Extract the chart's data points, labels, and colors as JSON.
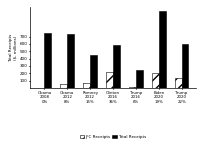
{
  "candidates": [
    "Obama\n2008\n0%",
    "Obama\n2012\n8%",
    "Romney\n2012\n15%",
    "Clinton\n2016\n36%",
    "Trump\n2016\n6%",
    "Biden\n2020\n19%",
    "Trump\n2020\n22%"
  ],
  "total_receipts": [
    745,
    738,
    449,
    585,
    239,
    1045,
    596
  ],
  "jfc_receipts": [
    3,
    58,
    68,
    213,
    15,
    200,
    130
  ],
  "ylabel": "Total Receipts\n($, millions)",
  "legend_jfc": "JFC Receipts",
  "legend_total": "Total Receipts",
  "bar_color_total": "#000000",
  "bar_color_jfc": "#ffffff",
  "bar_hatch": "///",
  "background_color": "#ffffff",
  "ylim": [
    0,
    1100
  ],
  "yticks": [
    100,
    200,
    300,
    400,
    500,
    600,
    700
  ],
  "bar_width": 0.3,
  "figwidth": 2.0,
  "figheight": 1.42,
  "dpi": 100
}
